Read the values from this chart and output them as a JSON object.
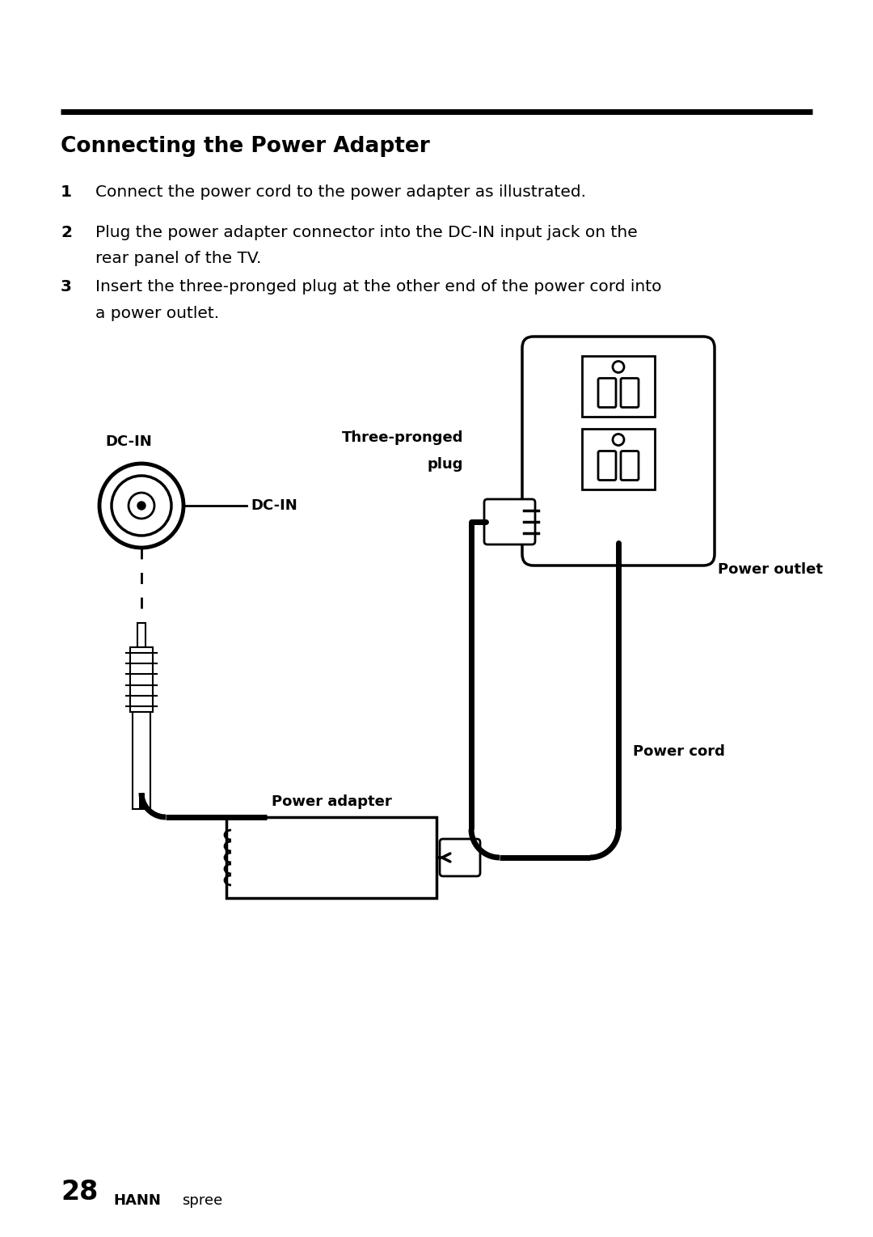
{
  "bg_color": "#ffffff",
  "title": "Connecting the Power Adapter",
  "step1": "Connect the power cord to the power adapter as illustrated.",
  "step2_line1": "Plug the power adapter connector into the DC-IN input jack on the",
  "step2_line2": "rear panel of the TV.",
  "step3_line1": "Insert the three-pronged plug at the other end of the power cord into",
  "step3_line2": "a power outlet.",
  "label_dcin_above": "DC-IN",
  "label_dcin_right": "DC-IN",
  "label_three_pronged_line1": "Three-pronged",
  "label_three_pronged_line2": "plug",
  "label_power_outlet": "Power outlet",
  "label_power_cord": "Power cord",
  "label_power_adapter": "Power adapter",
  "footer_28": "28",
  "footer_hann": "HANN",
  "footer_spree": "spree"
}
